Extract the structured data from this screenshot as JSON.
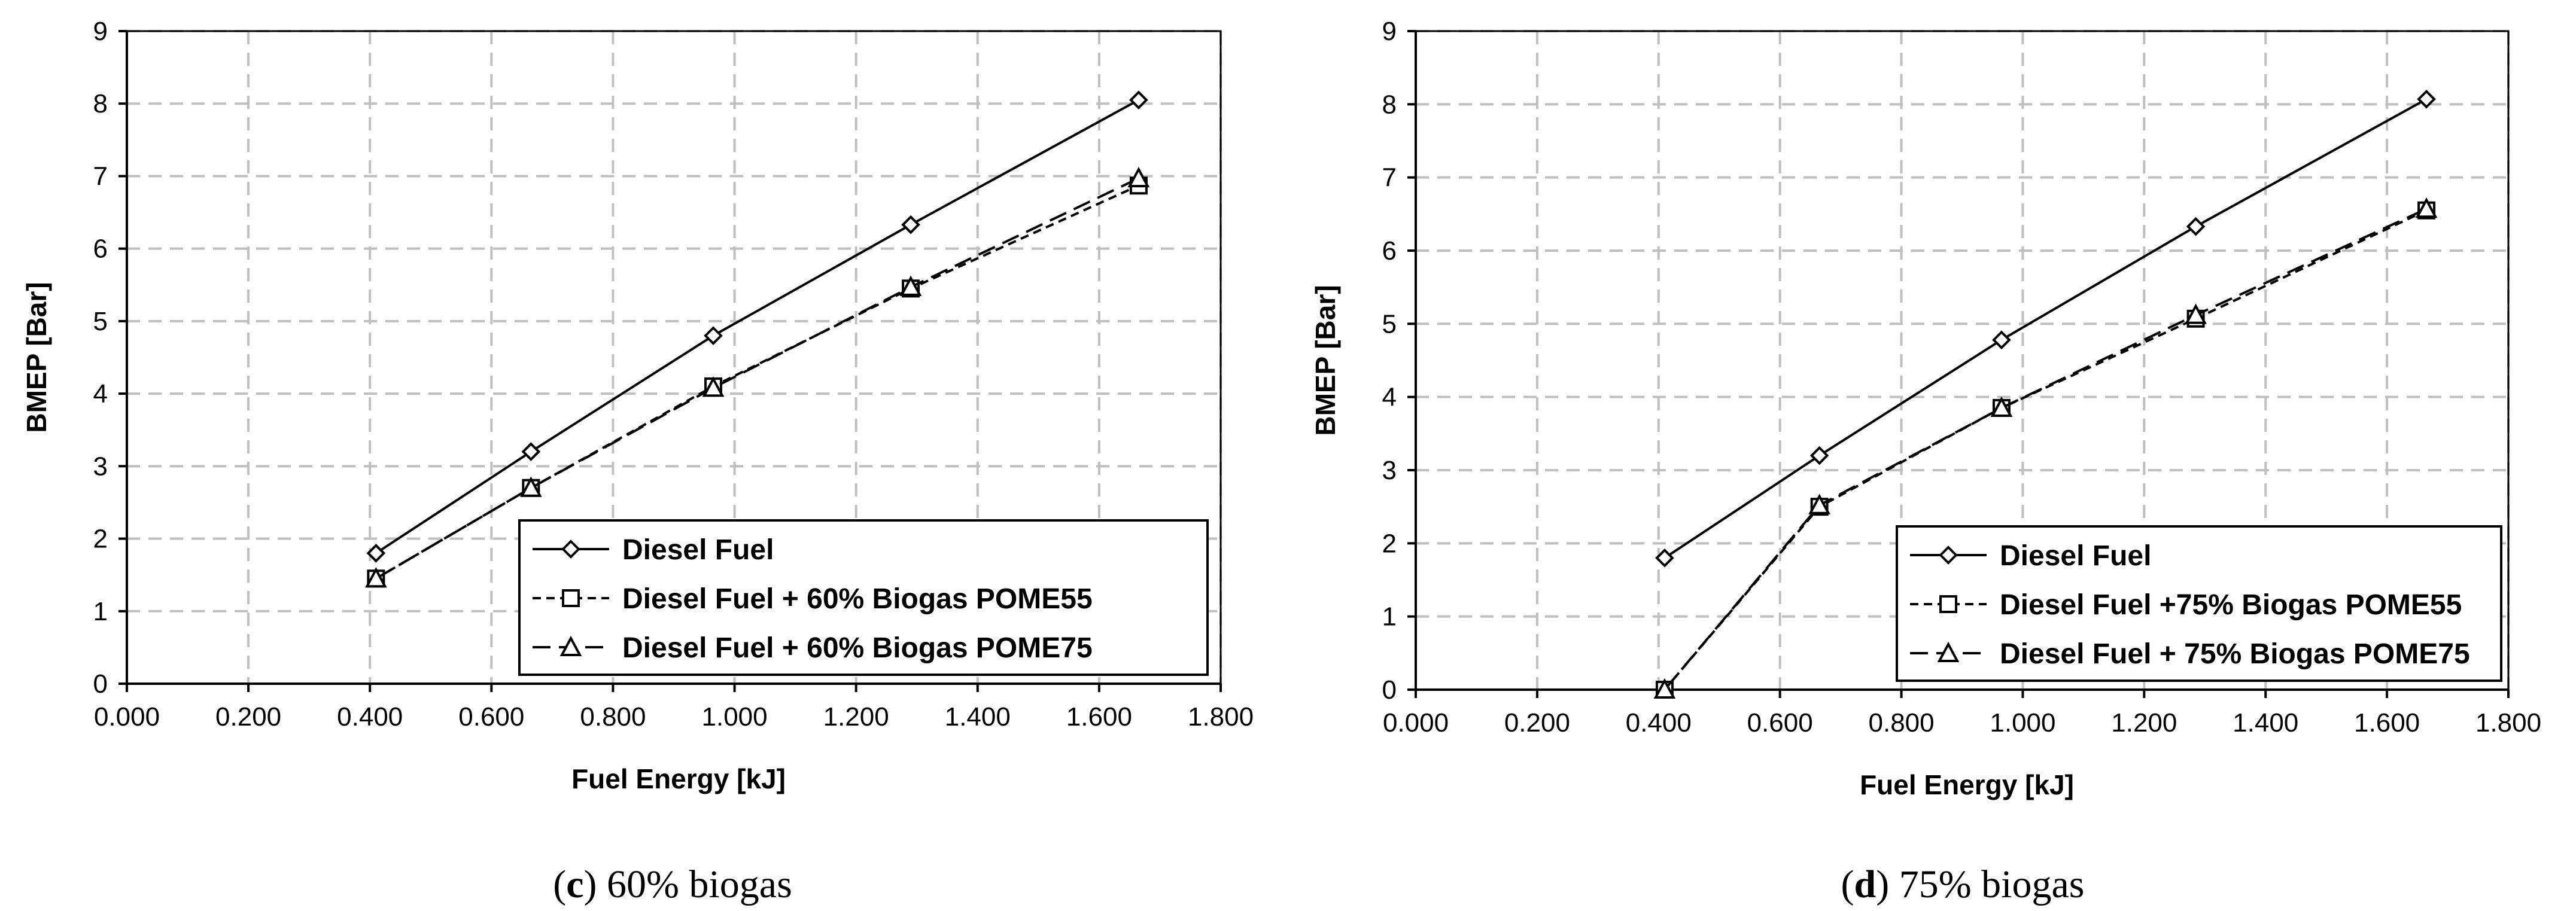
{
  "chart_data": [
    {
      "type": "line",
      "panel": "c",
      "caption": {
        "letter": "c",
        "text": "60% biogas"
      },
      "xlabel": "Fuel Energy [kJ]",
      "ylabel": "BMEP [Bar]",
      "xlim": [
        0,
        1.8
      ],
      "ylim": [
        0,
        9
      ],
      "xticks": [
        "0.000",
        "0.200",
        "0.400",
        "0.600",
        "0.800",
        "1.000",
        "1.200",
        "1.400",
        "1.600",
        "1.800"
      ],
      "yticks": [
        "0",
        "1",
        "2",
        "3",
        "4",
        "5",
        "6",
        "7",
        "8",
        "9"
      ],
      "grid": true,
      "legend": "bottom-right",
      "series": [
        {
          "name": "Diesel Fuel",
          "marker": "diamond",
          "dash": "solid",
          "x": [
            0.41,
            0.665,
            0.965,
            1.29,
            1.665
          ],
          "y": [
            1.8,
            3.2,
            4.8,
            6.33,
            8.05
          ]
        },
        {
          "name": "Diesel Fuel + 60% Biogas POME55",
          "marker": "square",
          "dash": "short",
          "x": [
            0.41,
            0.665,
            0.965,
            1.29,
            1.665
          ],
          "y": [
            1.45,
            2.7,
            4.1,
            5.45,
            6.87
          ]
        },
        {
          "name": "Diesel Fuel + 60% Biogas POME75",
          "marker": "triangle",
          "dash": "long",
          "x": [
            0.41,
            0.665,
            0.965,
            1.29,
            1.665
          ],
          "y": [
            1.45,
            2.7,
            4.08,
            5.47,
            6.97
          ]
        }
      ]
    },
    {
      "type": "line",
      "panel": "d",
      "caption": {
        "letter": "d",
        "text": "75% biogas"
      },
      "xlabel": "Fuel Energy [kJ]",
      "ylabel": "BMEP [Bar]",
      "xlim": [
        0,
        1.8
      ],
      "ylim": [
        0,
        9
      ],
      "xticks": [
        "0.000",
        "0.200",
        "0.400",
        "0.600",
        "0.800",
        "1.000",
        "1.200",
        "1.400",
        "1.600",
        "1.800"
      ],
      "yticks": [
        "0",
        "1",
        "2",
        "3",
        "4",
        "5",
        "6",
        "7",
        "8",
        "9"
      ],
      "grid": true,
      "legend": "bottom-right",
      "series": [
        {
          "name": "Diesel Fuel",
          "marker": "diamond",
          "dash": "solid",
          "x": [
            0.41,
            0.665,
            0.965,
            1.285,
            1.665
          ],
          "y": [
            1.8,
            3.2,
            4.78,
            6.33,
            8.07
          ]
        },
        {
          "name": "Diesel Fuel +75% Biogas POME55",
          "marker": "square",
          "dash": "short",
          "x": [
            0.41,
            0.665,
            0.965,
            1.285,
            1.665
          ],
          "y": [
            0.0,
            2.5,
            3.85,
            5.07,
            6.55
          ]
        },
        {
          "name": "Diesel Fuel + 75% Biogas POME75",
          "marker": "triangle",
          "dash": "long",
          "x": [
            0.41,
            0.665,
            0.965,
            1.285,
            1.665
          ],
          "y": [
            0.0,
            2.52,
            3.85,
            5.12,
            6.57
          ]
        }
      ]
    }
  ]
}
